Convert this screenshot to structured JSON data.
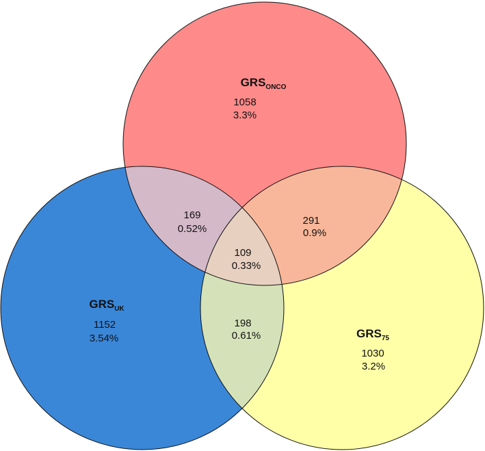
{
  "sets": [
    {
      "label": "GRS",
      "subscript": "ONCO",
      "count": 1058,
      "percent": "3.3%"
    },
    {
      "label": "GRS",
      "subscript": "UK",
      "count": 1152,
      "percent": "3.54%"
    },
    {
      "label": "GRS",
      "subscript": "75",
      "count": 1030,
      "percent": "3.2%"
    }
  ],
  "overlaps": [
    {
      "count": 169,
      "percent": "0.52%"
    },
    {
      "count": 291,
      "percent": "0.9%"
    },
    {
      "count": 198,
      "percent": "0.61%"
    },
    {
      "count": 109,
      "percent": "0.33%"
    }
  ]
}
